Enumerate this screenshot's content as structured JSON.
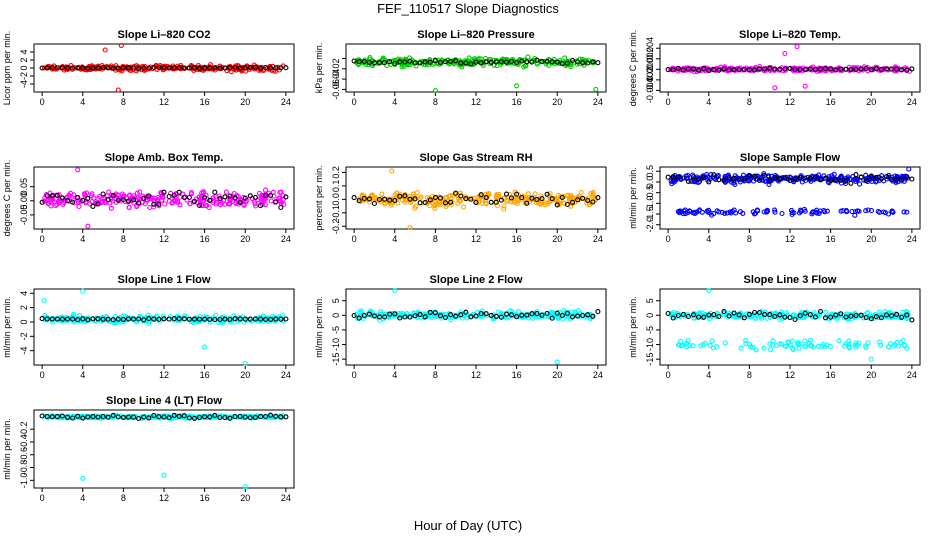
{
  "figure": {
    "title": "FEF_110517  Slope Diagnostics",
    "xlabel": "Hour of Day (UTC)"
  },
  "chart_data": [
    {
      "type": "scatter",
      "title": "Slope Li–820 CO2",
      "ylabel": "Licor ppm per min.",
      "ylim": [
        -6,
        6
      ],
      "yticks": [
        -4,
        -2,
        0,
        2,
        4
      ],
      "ytick_labels": [
        "-4",
        "-2",
        "0",
        "2",
        "4"
      ],
      "xlim": [
        -0.8,
        24.8
      ],
      "xticks": [
        0,
        4,
        8,
        12,
        16,
        20,
        24
      ],
      "color": "#ff0000",
      "band_center": 0,
      "band_spread": 1.2,
      "mean_spread": 0.15,
      "outliers": [
        {
          "x": 7.8,
          "y": 5.6
        },
        {
          "x": 7.5,
          "y": -5.5
        },
        {
          "x": 6.2,
          "y": 4.5
        }
      ]
    },
    {
      "type": "scatter",
      "title": "Slope Li–820 Pressure",
      "ylabel": "kPa per min.",
      "ylim": [
        -0.065,
        0.028
      ],
      "yticks": [
        -0.06,
        -0.04,
        -0.02,
        0
      ],
      "ytick_labels": [
        "-0.06",
        "-0.04",
        "-0.02",
        ""
      ],
      "xlim": [
        -0.8,
        24.8
      ],
      "xticks": [
        0,
        4,
        8,
        12,
        16,
        20,
        24
      ],
      "color": "#00cc00",
      "band_center": -0.007,
      "band_spread": 0.012,
      "mean_spread": 0.003,
      "outliers": [
        {
          "x": 8,
          "y": -0.062
        },
        {
          "x": 16,
          "y": -0.053
        },
        {
          "x": 23.8,
          "y": -0.06
        }
      ]
    },
    {
      "type": "scatter",
      "title": "Slope Li–820 Temp.",
      "ylabel": "degrees C per min.",
      "ylim": [
        -0.0043,
        0.0048
      ],
      "yticks": [
        -0.004,
        -0.002,
        0,
        0.002,
        0.004
      ],
      "ytick_labels": [
        "-0.004",
        "-0.002",
        "0.000",
        "0.002",
        "0.004"
      ],
      "xlim": [
        -0.8,
        24.8
      ],
      "xticks": [
        0,
        4,
        8,
        12,
        16,
        20,
        24
      ],
      "color": "#ff00ff",
      "band_center": 0,
      "band_spread": 0.0006,
      "mean_spread": 0.0002,
      "outliers": [
        {
          "x": 12.7,
          "y": 0.0043
        },
        {
          "x": 10.5,
          "y": -0.0035
        },
        {
          "x": 13.5,
          "y": -0.0032
        },
        {
          "x": 11.5,
          "y": 0.003
        }
      ]
    },
    {
      "type": "scatter",
      "title": "Slope Amb. Box Temp.",
      "ylabel": "degrees C per min.",
      "ylim": [
        -0.1,
        0.12
      ],
      "yticks": [
        -0.05,
        0,
        0.05
      ],
      "ytick_labels": [
        "-0.05",
        "0.00",
        "0.05"
      ],
      "xlim": [
        -0.8,
        24.8
      ],
      "xticks": [
        0,
        4,
        8,
        12,
        16,
        20,
        24
      ],
      "color": "#ff00ff",
      "band_center": 0.005,
      "band_spread": 0.045,
      "mean_spread": 0.025,
      "outliers": [
        {
          "x": 3.5,
          "y": 0.11
        },
        {
          "x": 4.5,
          "y": -0.09
        }
      ]
    },
    {
      "type": "scatter",
      "title": "Slope Gas Stream RH",
      "ylabel": "percent per min.",
      "ylim": [
        -0.22,
        0.24
      ],
      "yticks": [
        -0.2,
        -0.1,
        0,
        0.1,
        0.2
      ],
      "ytick_labels": [
        "-0.2",
        "-0.1",
        "0.0",
        "0.1",
        "0.2"
      ],
      "xlim": [
        -0.8,
        24.8
      ],
      "xticks": [
        0,
        4,
        8,
        12,
        16,
        20,
        24
      ],
      "color": "#ffa500",
      "band_center": 0,
      "band_spread": 0.08,
      "mean_spread": 0.04,
      "outliers": [
        {
          "x": 3.7,
          "y": 0.21
        },
        {
          "x": 5.5,
          "y": -0.21
        }
      ]
    },
    {
      "type": "scatter",
      "title": "Slope Sample Flow",
      "ylabel": "ml/min per min.",
      "ylim": [
        -2.2,
        0.7
      ],
      "yticks": [
        -2,
        -1.5,
        -1,
        -0.5,
        0,
        0.5
      ],
      "ytick_labels": [
        "-2.0",
        "-1.5",
        "-1.0",
        "-0.5",
        "0.0",
        "0.5"
      ],
      "xlim": [
        -0.8,
        24.8
      ],
      "xticks": [
        0,
        4,
        8,
        12,
        16,
        20,
        24
      ],
      "color": "#0000ff",
      "band_center": 0.15,
      "band_spread": 0.35,
      "mean_spread": 0.2,
      "second_band": {
        "center": -1.4,
        "spread": 0.2
      },
      "outliers": [
        {
          "x": 23.7,
          "y": 0.6
        }
      ]
    },
    {
      "type": "scatter",
      "title": "Slope Line 1 Flow",
      "ylabel": "ml/min per min.",
      "ylim": [
        -6,
        4.6
      ],
      "yticks": [
        -4,
        -2,
        0,
        2,
        4
      ],
      "ytick_labels": [
        "-4",
        "-2",
        "0",
        "2",
        "4"
      ],
      "xlim": [
        -0.8,
        24.8
      ],
      "xticks": [
        0,
        4,
        8,
        12,
        16,
        20,
        24
      ],
      "color": "#00ffff",
      "band_center": 0.4,
      "band_spread": 0.8,
      "mean_spread": 0.08,
      "outliers": [
        {
          "x": 4,
          "y": 4.3
        },
        {
          "x": 20,
          "y": -5.8
        },
        {
          "x": 16,
          "y": -3.5
        },
        {
          "x": 0.2,
          "y": 3
        }
      ]
    },
    {
      "type": "scatter",
      "title": "Slope Line 2 Flow",
      "ylabel": "ml/min per min.",
      "ylim": [
        -17,
        9
      ],
      "yticks": [
        -15,
        -10,
        -5,
        0,
        5
      ],
      "ytick_labels": [
        "-15",
        "-10",
        "-5",
        "0",
        "5"
      ],
      "xlim": [
        -0.8,
        24.8
      ],
      "xticks": [
        0,
        4,
        8,
        12,
        16,
        20,
        24
      ],
      "color": "#00ffff",
      "band_center": 0,
      "band_spread": 2,
      "mean_spread": 1.2,
      "outliers": [
        {
          "x": 4,
          "y": 8.5
        },
        {
          "x": 20,
          "y": -16
        }
      ]
    },
    {
      "type": "scatter",
      "title": "Slope Line 3 Flow",
      "ylabel": "ml/min per min.",
      "ylim": [
        -17,
        9
      ],
      "yticks": [
        -15,
        -10,
        -5,
        0,
        5
      ],
      "ytick_labels": [
        "-15",
        "-10",
        "-5",
        "0",
        "5"
      ],
      "xlim": [
        -0.8,
        24.8
      ],
      "xticks": [
        0,
        4,
        8,
        12,
        16,
        20,
        24
      ],
      "color": "#00ffff",
      "band_center": 0,
      "band_spread": 2,
      "mean_spread": 1.2,
      "second_band": {
        "center": -10,
        "spread": 2.5
      },
      "outliers": [
        {
          "x": 4,
          "y": 8.5
        },
        {
          "x": 20,
          "y": -15
        }
      ]
    },
    {
      "type": "scatter",
      "title": "Slope Line 4 (LT) Flow",
      "ylabel": "ml/min per min.",
      "ylim": [
        -1.12,
        0.1
      ],
      "yticks": [
        -1,
        -0.8,
        -0.6,
        -0.4,
        -0.2
      ],
      "ytick_labels": [
        "-1.0",
        "-0.8",
        "-0.6",
        "-0.4",
        "-0.2"
      ],
      "xlim": [
        -0.8,
        24.8
      ],
      "xticks": [
        0,
        4,
        8,
        12,
        16,
        20,
        24
      ],
      "color": "#00ffff",
      "band_center": -0.01,
      "band_spread": 0.03,
      "mean_spread": 0.03,
      "outliers": [
        {
          "x": 4,
          "y": -0.97
        },
        {
          "x": 12,
          "y": -0.92
        },
        {
          "x": 20,
          "y": -1.1
        }
      ]
    }
  ]
}
